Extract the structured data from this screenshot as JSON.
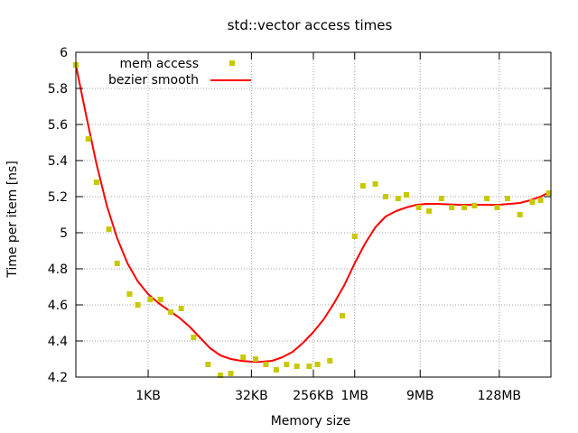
{
  "colors": {
    "points": "#c8c800",
    "smooth": "#ff0000",
    "axis": "#000000",
    "grid": "#a0a0a0"
  },
  "chart_data": {
    "type": "scatter",
    "title": "std::vector access times",
    "xlabel": "Memory size",
    "ylabel": "Time per item [ns]",
    "x_scale": "log2",
    "x_unit": "log2(bytes)",
    "xlim": [
      6.5,
      29.5
    ],
    "ylim": [
      4.2,
      6.0
    ],
    "y_ticks": [
      4.2,
      4.4,
      4.6,
      4.8,
      5.0,
      5.2,
      5.4,
      5.6,
      5.8,
      6.0
    ],
    "y_tick_labels": [
      "4.2",
      "4.4",
      "4.6",
      "4.8",
      "5",
      "5.2",
      "5.4",
      "5.6",
      "5.8",
      "6"
    ],
    "x_ticks": [
      {
        "x": 10,
        "label": "1KB"
      },
      {
        "x": 15,
        "label": "32KB"
      },
      {
        "x": 18,
        "label": "256KB"
      },
      {
        "x": 20,
        "label": "1MB"
      },
      {
        "x": 23.17,
        "label": "9MB"
      },
      {
        "x": 27,
        "label": "128MB"
      }
    ],
    "grid": true,
    "legend_position": "top-left",
    "series": [
      {
        "name": "mem access",
        "kind": "points",
        "x": [
          6.5,
          7.1,
          7.5,
          8.1,
          8.5,
          9.1,
          9.5,
          10.1,
          10.6,
          11.1,
          11.6,
          12.2,
          12.9,
          13.5,
          14.0,
          14.6,
          15.2,
          15.7,
          16.2,
          16.7,
          17.2,
          17.8,
          18.2,
          18.8,
          19.4,
          20.0,
          20.4,
          21.0,
          21.5,
          22.1,
          22.5,
          23.1,
          23.6,
          24.2,
          24.7,
          25.3,
          25.8,
          26.4,
          26.9,
          27.4,
          28.0,
          28.6,
          29.0,
          29.4
        ],
        "y": [
          5.93,
          5.52,
          5.28,
          5.02,
          4.83,
          4.66,
          4.6,
          4.63,
          4.63,
          4.56,
          4.58,
          4.42,
          4.27,
          4.21,
          4.22,
          4.31,
          4.3,
          4.27,
          4.24,
          4.27,
          4.26,
          4.26,
          4.27,
          4.29,
          4.54,
          4.98,
          5.26,
          5.27,
          5.2,
          5.19,
          5.21,
          5.14,
          5.12,
          5.19,
          5.14,
          5.14,
          5.15,
          5.19,
          5.14,
          5.19,
          5.1,
          5.17,
          5.18,
          5.22
        ]
      },
      {
        "name": "bezier smooth",
        "kind": "line",
        "x": [
          6.5,
          7.0,
          7.5,
          8.0,
          8.5,
          9.0,
          9.5,
          10.0,
          10.5,
          11.0,
          11.5,
          12.0,
          12.5,
          13.0,
          13.5,
          14.0,
          14.5,
          15.0,
          15.5,
          16.0,
          16.5,
          17.0,
          17.5,
          18.0,
          18.5,
          19.0,
          19.5,
          20.0,
          20.5,
          21.0,
          21.5,
          22.0,
          22.5,
          23.0,
          23.5,
          24.0,
          25.0,
          26.0,
          27.0,
          27.5,
          28.0,
          28.5,
          29.0,
          29.5
        ],
        "y": [
          5.93,
          5.65,
          5.38,
          5.15,
          4.97,
          4.83,
          4.73,
          4.66,
          4.61,
          4.57,
          4.53,
          4.48,
          4.42,
          4.36,
          4.32,
          4.3,
          4.29,
          4.285,
          4.285,
          4.29,
          4.31,
          4.34,
          4.39,
          4.45,
          4.52,
          4.61,
          4.71,
          4.83,
          4.94,
          5.03,
          5.09,
          5.12,
          5.14,
          5.155,
          5.16,
          5.16,
          5.155,
          5.155,
          5.155,
          5.16,
          5.165,
          5.18,
          5.2,
          5.23
        ]
      }
    ]
  }
}
